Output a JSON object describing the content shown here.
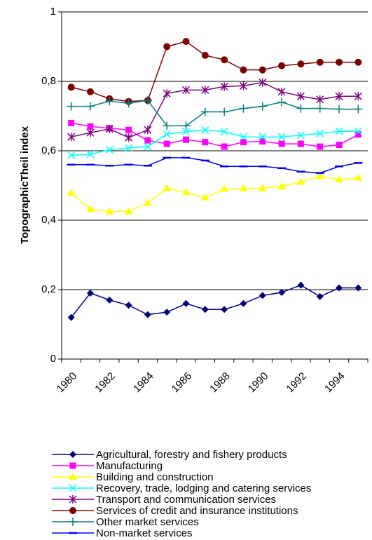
{
  "chart_data": {
    "type": "line",
    "y_label": "TopographicTheil index",
    "categories": [
      "1980",
      null,
      "1982",
      null,
      "1984",
      null,
      "1986",
      null,
      "1988",
      null,
      "1990",
      null,
      "1992",
      null,
      "1994",
      null
    ],
    "ylim": [
      0,
      1
    ],
    "yticks": [
      0,
      {
        "value": 0.2,
        "label": "0,2"
      },
      {
        "value": 0.4,
        "label": "0,4"
      },
      {
        "value": 0.6,
        "label": "0,6"
      },
      {
        "value": 0.8,
        "label": "0,8"
      },
      1
    ],
    "grid": true,
    "legend": "bottom",
    "series": [
      {
        "name": "Agricultural, forestry and fishery products",
        "color": "#000080",
        "marker": "diamond",
        "values": [
          0.12,
          0.19,
          0.17,
          0.155,
          0.128,
          0.135,
          0.16,
          0.143,
          0.143,
          0.16,
          0.183,
          0.192,
          0.213,
          0.18,
          0.205,
          0.205
        ]
      },
      {
        "name": "Manufacturing",
        "color": "#ff00ff",
        "marker": "square",
        "values": [
          0.68,
          0.67,
          0.665,
          0.66,
          0.63,
          0.62,
          0.632,
          0.625,
          0.612,
          0.625,
          0.627,
          0.62,
          0.62,
          0.612,
          0.617,
          0.647
        ]
      },
      {
        "name": "Building and construction",
        "color": "#ffff00",
        "marker": "triangle",
        "values": [
          0.478,
          0.432,
          0.425,
          0.425,
          0.45,
          0.492,
          0.48,
          0.465,
          0.49,
          0.492,
          0.492,
          0.497,
          0.51,
          0.527,
          0.517,
          0.522
        ]
      },
      {
        "name": "Recovery, trade, lodging and catering services",
        "color": "#00ffff",
        "marker": "x",
        "values": [
          0.587,
          0.59,
          0.603,
          0.608,
          0.612,
          0.648,
          0.655,
          0.66,
          0.655,
          0.64,
          0.64,
          0.64,
          0.645,
          0.65,
          0.656,
          0.656
        ]
      },
      {
        "name": "Transport and communication services",
        "color": "#800080",
        "marker": "star",
        "values": [
          0.64,
          0.652,
          0.663,
          0.638,
          0.66,
          0.765,
          0.775,
          0.775,
          0.785,
          0.787,
          0.797,
          0.77,
          0.757,
          0.748,
          0.757,
          0.757
        ]
      },
      {
        "name": "Services of credit and insurance institutions",
        "color": "#800000",
        "marker": "circle",
        "values": [
          0.783,
          0.77,
          0.75,
          0.742,
          0.745,
          0.9,
          0.915,
          0.875,
          0.862,
          0.833,
          0.833,
          0.845,
          0.85,
          0.855,
          0.855,
          0.855
        ]
      },
      {
        "name": "Other market services",
        "color": "#008080",
        "marker": "plus",
        "values": [
          0.728,
          0.728,
          0.743,
          0.737,
          0.745,
          0.672,
          0.672,
          0.712,
          0.712,
          0.722,
          0.728,
          0.74,
          0.722,
          0.722,
          0.72,
          0.72
        ]
      },
      {
        "name": "Non-market services",
        "color": "#0000ff",
        "marker": "dash",
        "values": [
          0.56,
          0.56,
          0.557,
          0.56,
          0.557,
          0.58,
          0.58,
          0.572,
          0.555,
          0.555,
          0.555,
          0.55,
          0.54,
          0.536,
          0.555,
          0.565
        ]
      }
    ]
  }
}
